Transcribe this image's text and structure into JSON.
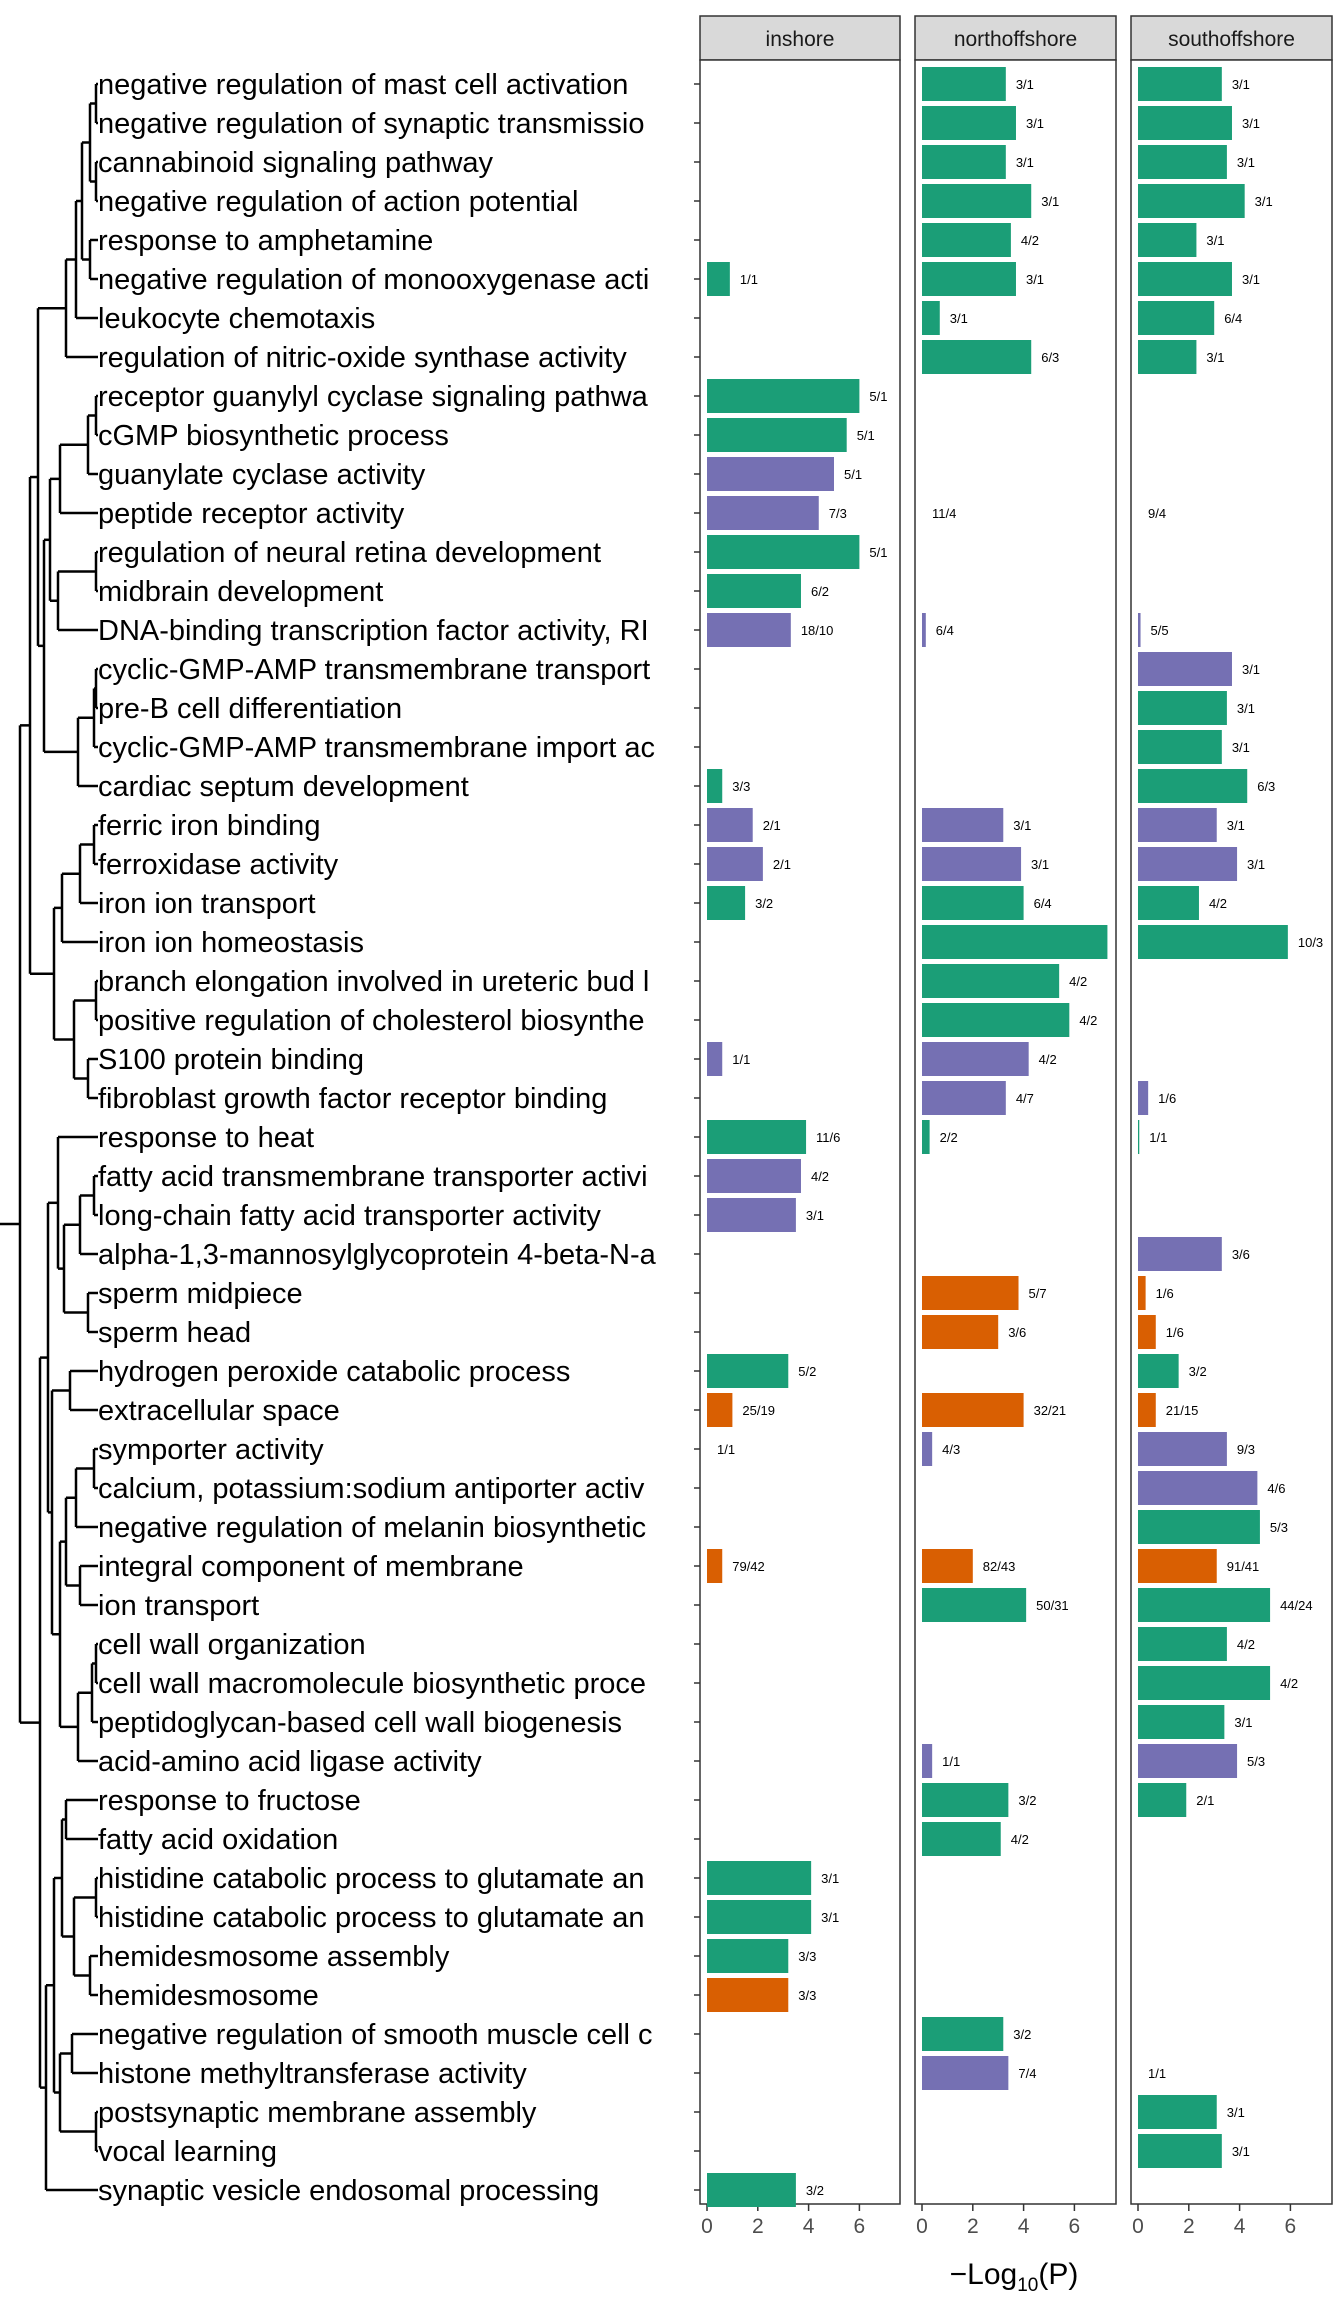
{
  "chart_data": {
    "type": "bar",
    "orientation": "horizontal",
    "xlabel": "−Log₁₀(P)",
    "xlabel_parts": {
      "prefix": "−Log",
      "sub": "10",
      "suffix": "(P)"
    },
    "xlim": [
      -0.5,
      7.6
    ],
    "xticks": [
      0,
      2,
      4,
      6
    ],
    "grid": false,
    "legend": "none",
    "colors": {
      "BP": "#1b9e77",
      "MF": "#7570b3",
      "CC": "#d95f02"
    },
    "panels": [
      "inshore",
      "northoffshore",
      "southoffshore"
    ],
    "categories": [
      "negative regulation of mast cell activation",
      "negative regulation of synaptic transmissio",
      "cannabinoid signaling pathway",
      "negative regulation of action potential",
      "response to amphetamine",
      "negative regulation of monooxygenase acti",
      "leukocyte chemotaxis",
      "regulation of nitric-oxide synthase activity",
      "receptor guanylyl cyclase signaling pathwa",
      "cGMP biosynthetic process",
      "guanylate cyclase activity",
      "peptide receptor activity",
      "regulation of neural retina development",
      "midbrain development",
      "DNA-binding transcription factor activity, RI",
      "cyclic-GMP-AMP transmembrane transport",
      "pre-B cell differentiation",
      "cyclic-GMP-AMP transmembrane import ac",
      "cardiac septum development",
      "ferric iron binding",
      "ferroxidase activity",
      "iron ion transport",
      "iron ion homeostasis",
      "branch elongation involved in ureteric bud l",
      "positive regulation of cholesterol biosynthe",
      "S100 protein binding",
      "fibroblast growth factor receptor binding",
      "response to heat",
      "fatty acid transmembrane transporter activi",
      "long-chain fatty acid transporter activity",
      "alpha-1,3-mannosylglycoprotein 4-beta-N-a",
      "sperm midpiece",
      "sperm head",
      "hydrogen peroxide catabolic process",
      "extracellular space",
      "symporter activity",
      "calcium, potassium:sodium antiporter activ",
      "negative regulation of melanin biosynthetic",
      "integral component of membrane",
      "ion transport",
      "cell wall organization",
      "cell wall macromolecule biosynthetic proce",
      "peptidoglycan-based cell wall biogenesis",
      "acid-amino acid ligase activity",
      "response to fructose",
      "fatty acid oxidation",
      "histidine catabolic process to glutamate an",
      "histidine catabolic process to glutamate an",
      "hemidesmosome assembly",
      "hemidesmosome",
      "negative regulation of smooth muscle cell c",
      "histone methyltransferase activity",
      "postsynaptic membrane assembly",
      "vocal learning",
      "synaptic vesicle endosomal processing"
    ],
    "series": [
      {
        "panel": "inshore",
        "bars": [
          null,
          null,
          null,
          null,
          null,
          {
            "v": 0.9,
            "o": "BP",
            "l": "1/1"
          },
          null,
          null,
          {
            "v": 6.0,
            "o": "BP",
            "l": "5/1"
          },
          {
            "v": 5.5,
            "o": "BP",
            "l": "5/1"
          },
          {
            "v": 5.0,
            "o": "MF",
            "l": "5/1"
          },
          {
            "v": 4.4,
            "o": "MF",
            "l": "7/3"
          },
          {
            "v": 6.0,
            "o": "BP",
            "l": "5/1"
          },
          {
            "v": 3.7,
            "o": "BP",
            "l": "6/2"
          },
          {
            "v": 3.3,
            "o": "MF",
            "l": "18/10"
          },
          null,
          null,
          null,
          {
            "v": 0.6,
            "o": "BP",
            "l": "3/3"
          },
          {
            "v": 1.8,
            "o": "MF",
            "l": "2/1"
          },
          {
            "v": 2.2,
            "o": "MF",
            "l": "2/1"
          },
          {
            "v": 1.5,
            "o": "BP",
            "l": "3/2"
          },
          null,
          null,
          null,
          {
            "v": 0.6,
            "o": "MF",
            "l": "1/1"
          },
          null,
          {
            "v": 3.9,
            "o": "BP",
            "l": "11/6"
          },
          {
            "v": 3.7,
            "o": "MF",
            "l": "4/2"
          },
          {
            "v": 3.5,
            "o": "MF",
            "l": "3/1"
          },
          null,
          null,
          null,
          {
            "v": 3.2,
            "o": "BP",
            "l": "5/2"
          },
          {
            "v": 1.0,
            "o": "CC",
            "l": "25/19"
          },
          {
            "v": 0.0,
            "o": "MF",
            "l": "1/1"
          },
          null,
          null,
          {
            "v": 0.6,
            "o": "CC",
            "l": "79/42"
          },
          null,
          null,
          null,
          null,
          null,
          null,
          null,
          {
            "v": 4.1,
            "o": "BP",
            "l": "3/1"
          },
          {
            "v": 4.1,
            "o": "BP",
            "l": "3/1"
          },
          {
            "v": 3.2,
            "o": "BP",
            "l": "3/3"
          },
          {
            "v": 3.2,
            "o": "CC",
            "l": "3/3"
          },
          null,
          null,
          null,
          null,
          {
            "v": 3.5,
            "o": "BP",
            "l": "3/2"
          }
        ]
      },
      {
        "panel": "northoffshore",
        "bars": [
          {
            "v": 3.3,
            "o": "BP",
            "l": "3/1"
          },
          {
            "v": 3.7,
            "o": "BP",
            "l": "3/1"
          },
          {
            "v": 3.3,
            "o": "BP",
            "l": "3/1"
          },
          {
            "v": 4.3,
            "o": "BP",
            "l": "3/1"
          },
          {
            "v": 3.5,
            "o": "BP",
            "l": "4/2"
          },
          {
            "v": 3.7,
            "o": "BP",
            "l": "3/1"
          },
          {
            "v": 0.7,
            "o": "BP",
            "l": "3/1"
          },
          {
            "v": 4.3,
            "o": "BP",
            "l": "6/3"
          },
          null,
          null,
          null,
          {
            "v": 0.0,
            "o": "MF",
            "l": "11/4"
          },
          null,
          null,
          {
            "v": 0.15,
            "o": "MF",
            "l": "6/4"
          },
          null,
          null,
          null,
          null,
          {
            "v": 3.2,
            "o": "MF",
            "l": "3/1"
          },
          {
            "v": 3.9,
            "o": "MF",
            "l": "3/1"
          },
          {
            "v": 4.0,
            "o": "BP",
            "l": "6/4"
          },
          {
            "v": 7.3,
            "o": "BP",
            "l": null
          },
          {
            "v": 5.4,
            "o": "BP",
            "l": "4/2"
          },
          {
            "v": 5.8,
            "o": "BP",
            "l": "4/2"
          },
          {
            "v": 4.2,
            "o": "MF",
            "l": "4/2"
          },
          {
            "v": 3.3,
            "o": "MF",
            "l": "4/7"
          },
          {
            "v": 0.3,
            "o": "BP",
            "l": "2/2"
          },
          null,
          null,
          null,
          {
            "v": 3.8,
            "o": "CC",
            "l": "5/7"
          },
          {
            "v": 3.0,
            "o": "CC",
            "l": "3/6"
          },
          null,
          {
            "v": 4.0,
            "o": "CC",
            "l": "32/21"
          },
          {
            "v": 0.4,
            "o": "MF",
            "l": "4/3"
          },
          null,
          null,
          {
            "v": 2.0,
            "o": "CC",
            "l": "82/43"
          },
          {
            "v": 4.1,
            "o": "BP",
            "l": "50/31"
          },
          null,
          null,
          null,
          {
            "v": 0.4,
            "o": "MF",
            "l": "1/1"
          },
          {
            "v": 3.4,
            "o": "BP",
            "l": "3/2"
          },
          {
            "v": 3.1,
            "o": "BP",
            "l": "4/2"
          },
          null,
          null,
          null,
          null,
          {
            "v": 3.2,
            "o": "BP",
            "l": "3/2"
          },
          {
            "v": 3.4,
            "o": "MF",
            "l": "7/4"
          },
          null,
          null,
          null
        ]
      },
      {
        "panel": "southoffshore",
        "bars": [
          {
            "v": 3.3,
            "o": "BP",
            "l": "3/1"
          },
          {
            "v": 3.7,
            "o": "BP",
            "l": "3/1"
          },
          {
            "v": 3.5,
            "o": "BP",
            "l": "3/1"
          },
          {
            "v": 4.2,
            "o": "BP",
            "l": "3/1"
          },
          {
            "v": 2.3,
            "o": "BP",
            "l": "3/1"
          },
          {
            "v": 3.7,
            "o": "BP",
            "l": "3/1"
          },
          {
            "v": 3.0,
            "o": "BP",
            "l": "6/4"
          },
          {
            "v": 2.3,
            "o": "BP",
            "l": "3/1"
          },
          null,
          null,
          null,
          {
            "v": 0.0,
            "o": "MF",
            "l": "9/4"
          },
          null,
          null,
          {
            "v": 0.1,
            "o": "MF",
            "l": "5/5"
          },
          {
            "v": 3.7,
            "o": "MF",
            "l": "3/1"
          },
          {
            "v": 3.5,
            "o": "BP",
            "l": "3/1"
          },
          {
            "v": 3.3,
            "o": "BP",
            "l": "3/1"
          },
          {
            "v": 4.3,
            "o": "BP",
            "l": "6/3"
          },
          {
            "v": 3.1,
            "o": "MF",
            "l": "3/1"
          },
          {
            "v": 3.9,
            "o": "MF",
            "l": "3/1"
          },
          {
            "v": 2.4,
            "o": "BP",
            "l": "4/2"
          },
          {
            "v": 5.9,
            "o": "BP",
            "l": "10/3"
          },
          null,
          null,
          null,
          {
            "v": 0.4,
            "o": "MF",
            "l": "1/6"
          },
          {
            "v": 0.05,
            "o": "BP",
            "l": "1/1"
          },
          null,
          null,
          {
            "v": 3.3,
            "o": "MF",
            "l": "3/6"
          },
          {
            "v": 0.3,
            "o": "CC",
            "l": "1/6"
          },
          {
            "v": 0.7,
            "o": "CC",
            "l": "1/6"
          },
          {
            "v": 1.6,
            "o": "BP",
            "l": "3/2"
          },
          {
            "v": 0.7,
            "o": "CC",
            "l": "21/15"
          },
          {
            "v": 3.5,
            "o": "MF",
            "l": "9/3"
          },
          {
            "v": 4.7,
            "o": "MF",
            "l": "4/6"
          },
          {
            "v": 4.8,
            "o": "BP",
            "l": "5/3"
          },
          {
            "v": 3.1,
            "o": "CC",
            "l": "91/41"
          },
          {
            "v": 5.2,
            "o": "BP",
            "l": "44/24"
          },
          {
            "v": 3.5,
            "o": "BP",
            "l": "4/2"
          },
          {
            "v": 5.2,
            "o": "BP",
            "l": "4/2"
          },
          {
            "v": 3.4,
            "o": "BP",
            "l": "3/1"
          },
          {
            "v": 3.9,
            "o": "MF",
            "l": "5/3"
          },
          {
            "v": 1.9,
            "o": "BP",
            "l": "2/1"
          },
          null,
          null,
          null,
          null,
          null,
          null,
          {
            "v": 0.0,
            "o": "MF",
            "l": "1/1"
          },
          {
            "v": 3.1,
            "o": "BP",
            "l": "3/1"
          },
          {
            "v": 3.3,
            "o": "BP",
            "l": "3/1"
          },
          null
        ]
      }
    ]
  }
}
